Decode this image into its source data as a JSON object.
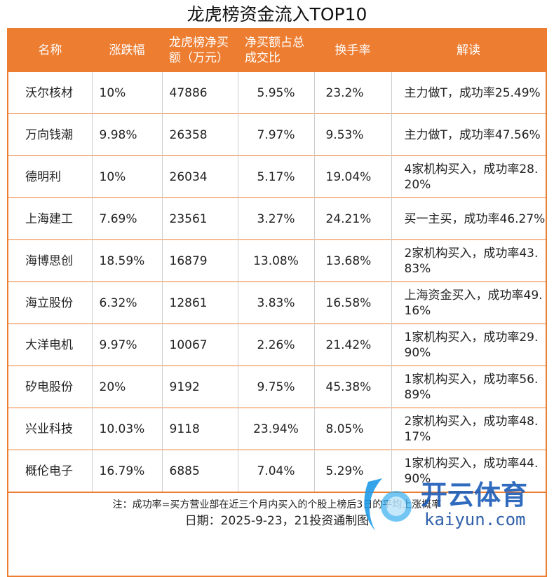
{
  "title": "龙虎榜资金流入TOP10",
  "headers": [
    "名称",
    "涨跌幅",
    "龙虎榜净买额（万元）",
    "净买额占总成交比",
    "换手率",
    "解读"
  ],
  "rows": [
    [
      "沃尔核材",
      "10%",
      "47886",
      "5.95%",
      "23.2%",
      "主力做T，成功率25.49%"
    ],
    [
      "万向钱潮",
      "9.98%",
      "26358",
      "7.97%",
      "9.53%",
      "主力做T，成功率47.56%"
    ],
    [
      "德明利",
      "10%",
      "26034",
      "5.17%",
      "19.04%",
      "4家机构买入，成功率28.20%"
    ],
    [
      "上海建工",
      "7.69%",
      "23561",
      "3.27%",
      "24.21%",
      "买一主买，成功率46.27%"
    ],
    [
      "海博思创",
      "18.59%",
      "16879",
      "13.08%",
      "13.68%",
      "2家机构买入，成功率43.83%"
    ],
    [
      "海立股份",
      "6.32%",
      "12861",
      "3.83%",
      "16.58%",
      "上海资金买入，成功率49.16%"
    ],
    [
      "大洋电机",
      "9.97%",
      "10067",
      "2.26%",
      "21.42%",
      "1家机构买入，成功率29.90%"
    ],
    [
      "矽电股份",
      "20%",
      "9192",
      "9.75%",
      "45.38%",
      "1家机构买入，成功率56.89%"
    ],
    [
      "兴业科技",
      "10.03%",
      "9118",
      "23.94%",
      "8.05%",
      "2家机构买入，成功率48.17%"
    ],
    [
      "概伦电子",
      "16.79%",
      "6885",
      "7.04%",
      "5.29%",
      "1家机构买入，成功率44.90%"
    ]
  ],
  "footer": {
    "note": "注：成功率=买方营业部在近三个月内买入的个股上榜后3日的平均上涨概率",
    "date": "日期：2025-9-23，21投资通制图"
  },
  "watermark": {
    "brand": "开云体育",
    "url": "kaiyun.com"
  },
  "colors": {
    "accent": "#ED7D31"
  }
}
